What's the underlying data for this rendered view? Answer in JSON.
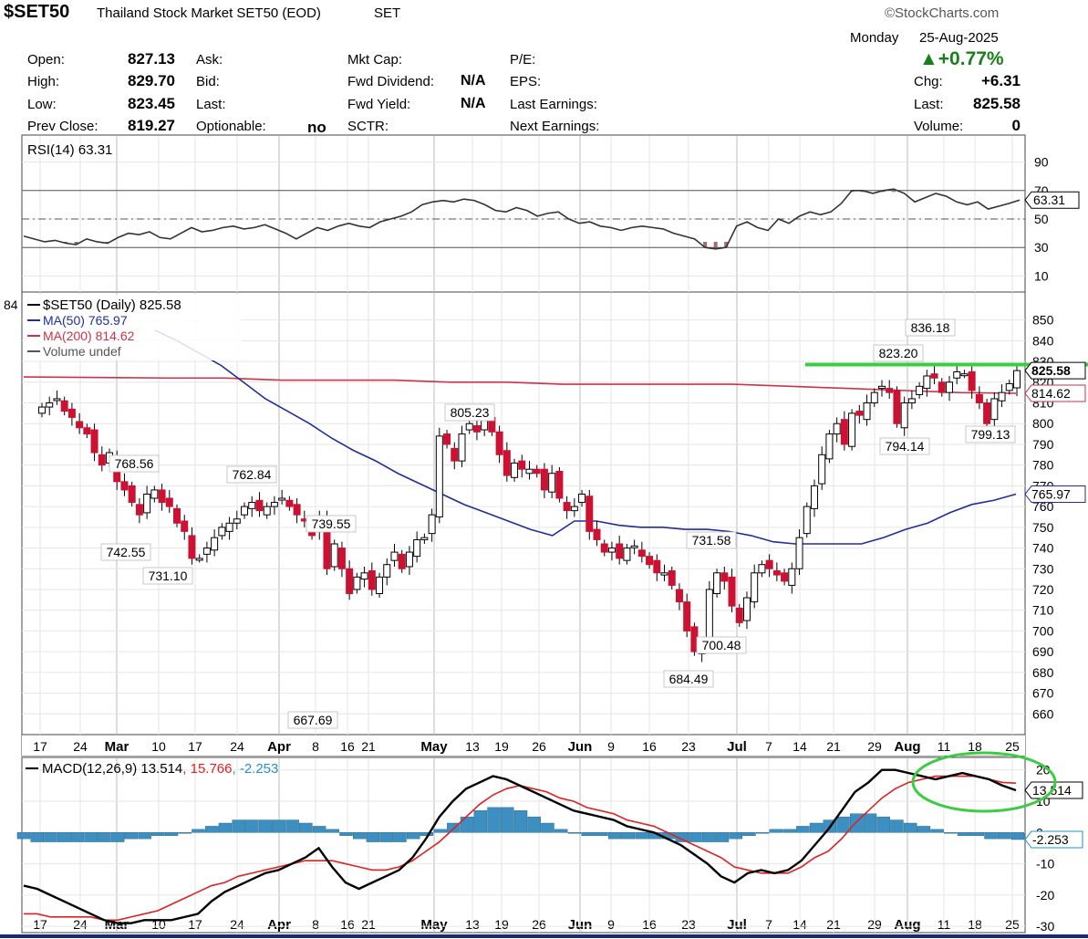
{
  "header": {
    "symbol": "$SET50",
    "name": "Thailand Stock Market SET50 (EOD)",
    "exchange": "SET",
    "watermark": "©StockCharts.com",
    "day": "Monday",
    "date": "25-Aug-2025",
    "change_pct": "+0.77%",
    "change_pct_color": "#1a7f1a"
  },
  "quote": {
    "labels": {
      "open": "Open:",
      "high": "High:",
      "low": "Low:",
      "prev_close": "Prev Close:",
      "ask": "Ask:",
      "bid": "Bid:",
      "last": "Last:",
      "optionable": "Optionable:",
      "mkt_cap": "Mkt Cap:",
      "fwd_dividend": "Fwd Dividend:",
      "fwd_yield": "Fwd Yield:",
      "sctr": "SCTR:",
      "pe": "P/E:",
      "eps": "EPS:",
      "last_earnings": "Last Earnings:",
      "next_earnings": "Next Earnings:",
      "chg": "Chg:",
      "last_r": "Last:",
      "volume": "Volume:"
    },
    "values": {
      "open": "827.13",
      "high": "829.70",
      "low": "823.45",
      "prev_close": "819.27",
      "optionable": "no",
      "fwd_dividend": "N/A",
      "fwd_yield": "N/A",
      "chg": "+6.31",
      "last_r": "825.58",
      "volume": "0"
    }
  },
  "chart_data": [
    {
      "type": "line",
      "title": "RSI(14) 63.31",
      "indicator": "RSI(14)",
      "current": "63.31",
      "ylim": [
        0,
        100
      ],
      "yticks": [
        "90",
        "70",
        "50",
        "30",
        "10"
      ],
      "reference_lines": [
        70,
        50,
        30
      ],
      "series": [
        {
          "name": "RSI(14)",
          "color": "#333333",
          "values": [
            38,
            36,
            34,
            35,
            33,
            32,
            36,
            34,
            33,
            37,
            40,
            39,
            41,
            37,
            36,
            40,
            44,
            41,
            42,
            44,
            45,
            43,
            44,
            46,
            43,
            40,
            36,
            40,
            44,
            42,
            45,
            47,
            45,
            44,
            48,
            50,
            52,
            55,
            60,
            62,
            63,
            62,
            64,
            63,
            60,
            56,
            55,
            58,
            56,
            52,
            54,
            55,
            50,
            47,
            48,
            45,
            44,
            42,
            44,
            45,
            44,
            43,
            40,
            38,
            36,
            30,
            29,
            30,
            45,
            48,
            44,
            42,
            50,
            47,
            52,
            55,
            53,
            55,
            61,
            70,
            70,
            68,
            70,
            71,
            68,
            62,
            65,
            68,
            66,
            62,
            60,
            62,
            57,
            59,
            61,
            63.31
          ]
        }
      ]
    },
    {
      "type": "candlestick",
      "title": "$SET50 (Daily) 825.58",
      "legend": [
        {
          "label": "$SET50 (Daily) 825.58",
          "color": "#000000"
        },
        {
          "label": "MA(50) 765.97",
          "color": "#1f2e9c"
        },
        {
          "label": "MA(200) 814.62",
          "color": "#cc3344"
        },
        {
          "label": "Volume undef",
          "color": "#555555"
        }
      ],
      "left_edge_label": "84",
      "ylim": [
        650,
        856
      ],
      "yticks": [
        "850",
        "840",
        "830",
        "820",
        "810",
        "800",
        "790",
        "780",
        "770",
        "760",
        "750",
        "740",
        "730",
        "720",
        "710",
        "700",
        "690",
        "680",
        "670",
        "660"
      ],
      "x_ticks": [
        "17",
        "24",
        "Mar",
        "10",
        "17",
        "24",
        "Apr",
        "8",
        "16",
        "21",
        "May",
        "13",
        "19",
        "26",
        "Jun",
        "9",
        "16",
        "23",
        "Jul",
        "7",
        "14",
        "21",
        "29",
        "Aug",
        "11",
        "18",
        "25"
      ],
      "bold_ticks": [
        "Mar",
        "Apr",
        "May",
        "Jun",
        "Jul",
        "Aug"
      ],
      "colors": {
        "up": "#ffffff",
        "down": "#cc1133",
        "outline": "#000000"
      },
      "closes": [
        808,
        810,
        812,
        806,
        803,
        798,
        795,
        786,
        780,
        786,
        772,
        768,
        762,
        756,
        766,
        768,
        762,
        760,
        752,
        748,
        735,
        735,
        740,
        745,
        750,
        752,
        754,
        760,
        762,
        758,
        760,
        762,
        764,
        760,
        756,
        753,
        746,
        755,
        730,
        742,
        730,
        718,
        726,
        728,
        720,
        726,
        732,
        738,
        730,
        738,
        744,
        745,
        756,
        794,
        790,
        782,
        795,
        800,
        796,
        805,
        796,
        785,
        775,
        781,
        778,
        778,
        776,
        768,
        776,
        764,
        758,
        760,
        766,
        748,
        744,
        738,
        740,
        735,
        740,
        741,
        736,
        732,
        728,
        728,
        722,
        714,
        700,
        690,
        694,
        720,
        728,
        724,
        712,
        704,
        716,
        728,
        732,
        730,
        727,
        724,
        730,
        745,
        760,
        770,
        785,
        795,
        800,
        790,
        805,
        804,
        810,
        815,
        818,
        815,
        800,
        810,
        812,
        818,
        823,
        822,
        815,
        820,
        825,
        824,
        816,
        810,
        800,
        812,
        815,
        819.27,
        825.58
      ],
      "ma50": [
        845,
        840,
        834,
        828,
        820,
        812,
        806,
        800,
        793,
        787,
        782,
        776,
        771,
        766,
        761,
        757,
        753,
        749,
        746,
        753,
        753,
        751,
        750,
        750,
        749,
        749,
        748,
        746,
        743,
        742,
        742,
        742,
        742,
        745,
        749,
        752,
        757,
        761,
        763,
        766
      ],
      "ma200": [
        822,
        822,
        821,
        821,
        821,
        820,
        820,
        819,
        819,
        819,
        819,
        818,
        817,
        816,
        815,
        814.62
      ],
      "annotations": [
        {
          "label": "768.56",
          "value": 768.56
        },
        {
          "label": "742.55",
          "value": 742.55
        },
        {
          "label": "731.10",
          "value": 731.1
        },
        {
          "label": "762.84",
          "value": 762.84
        },
        {
          "label": "739.55",
          "value": 739.55
        },
        {
          "label": "667.69",
          "value": 667.69
        },
        {
          "label": "805.23",
          "value": 805.23
        },
        {
          "label": "731.58",
          "value": 731.58
        },
        {
          "label": "684.49",
          "value": 684.49
        },
        {
          "label": "700.48",
          "value": 700.48
        },
        {
          "label": "823.20",
          "value": 823.2
        },
        {
          "label": "836.18",
          "value": 836.18
        },
        {
          "label": "794.14",
          "value": 794.14
        },
        {
          "label": "799.13",
          "value": 799.13
        }
      ],
      "horizontal_line": {
        "value": 828.5,
        "color": "#3ccc44"
      },
      "price_tags": [
        {
          "label": "825.58",
          "value": 825.58,
          "color": "#000000"
        },
        {
          "label": "814.62",
          "value": 814.62,
          "color": "#cc3344"
        },
        {
          "label": "765.97",
          "value": 765.97,
          "color": "#1f2e9c"
        }
      ]
    },
    {
      "type": "line",
      "title": "MACD(12,26,9)",
      "label_parts": [
        "MACD(12,26,9)",
        "13.514",
        "15.766",
        "-2.253"
      ],
      "label_colors": [
        "#000000",
        "#000000",
        "#dd2222",
        "#2a8fc4"
      ],
      "ylim": [
        -32,
        24
      ],
      "yticks": [
        "20",
        "10",
        "0",
        "-10",
        "-20",
        "-30"
      ],
      "x_ticks": [
        "17",
        "24",
        "Mar",
        "10",
        "17",
        "24",
        "Apr",
        "8",
        "16",
        "21",
        "May",
        "13",
        "19",
        "26",
        "Jun",
        "9",
        "16",
        "23",
        "Jul",
        "7",
        "14",
        "21",
        "29",
        "Aug",
        "11",
        "18",
        "25"
      ],
      "series": [
        {
          "name": "MACD",
          "color": "#000000",
          "values": [
            -17,
            -18,
            -20,
            -22,
            -24,
            -26,
            -28,
            -29,
            -29,
            -28,
            -28,
            -28,
            -27,
            -26,
            -22,
            -19,
            -17,
            -15,
            -13,
            -12,
            -10,
            -8,
            -5,
            -11,
            -16,
            -18,
            -16,
            -14,
            -12,
            -8,
            -2,
            5,
            10,
            14,
            16,
            18,
            17,
            15,
            13,
            11,
            9,
            7,
            6,
            5,
            4,
            2,
            1,
            0,
            -2,
            -4,
            -7,
            -10,
            -14,
            -16,
            -13,
            -12,
            -13,
            -12,
            -9,
            -4,
            1,
            7,
            13,
            16,
            20,
            20,
            19,
            18,
            17,
            18,
            19,
            18,
            17,
            15,
            13.514
          ]
        },
        {
          "name": "Signal",
          "color": "#dd2222",
          "values": [
            -26,
            -26,
            -27,
            -27,
            -27,
            -27,
            -28,
            -28,
            -27,
            -26,
            -25,
            -23,
            -21,
            -19,
            -17,
            -16,
            -14,
            -13,
            -12,
            -11,
            -10,
            -9,
            -9,
            -9,
            -10,
            -11,
            -12,
            -12,
            -11,
            -9,
            -6,
            -3,
            1,
            5,
            9,
            12,
            14,
            15,
            14,
            13,
            11,
            10,
            8,
            7,
            6,
            4,
            3,
            2,
            0,
            -2,
            -4,
            -6,
            -8,
            -11,
            -12,
            -13,
            -13,
            -13,
            -11,
            -8,
            -6,
            -2,
            3,
            7,
            11,
            14,
            16,
            17,
            18,
            18,
            18,
            18,
            17,
            16,
            15.766
          ]
        }
      ],
      "histogram": {
        "name": "Histogram",
        "color": "#3c8fc0",
        "values": [
          -2,
          -3,
          -3,
          -3,
          -3,
          -3,
          -3,
          -3,
          -2,
          -2,
          -1,
          -1,
          0,
          1,
          2,
          3,
          4,
          4,
          4,
          4,
          4,
          3,
          2,
          1,
          -1,
          -2,
          -3,
          -3,
          -3,
          -2,
          -1,
          1,
          3,
          5,
          7,
          8,
          8,
          7,
          5,
          3,
          1,
          0,
          -1,
          -1,
          -2,
          -2,
          -2,
          -2,
          -2,
          -3,
          -3,
          -3,
          -3,
          -2,
          -1,
          0,
          1,
          1,
          2,
          3,
          4,
          5,
          6,
          6,
          5,
          4,
          3,
          2,
          1,
          0,
          -1,
          -1,
          -2,
          -2,
          -2.253
        ]
      },
      "price_tags": [
        {
          "label": "13.514",
          "value": 13.514,
          "color": "#000000"
        },
        {
          "label": "-2.253",
          "value": -2.253,
          "color": "#2a8fc4"
        }
      ]
    }
  ]
}
